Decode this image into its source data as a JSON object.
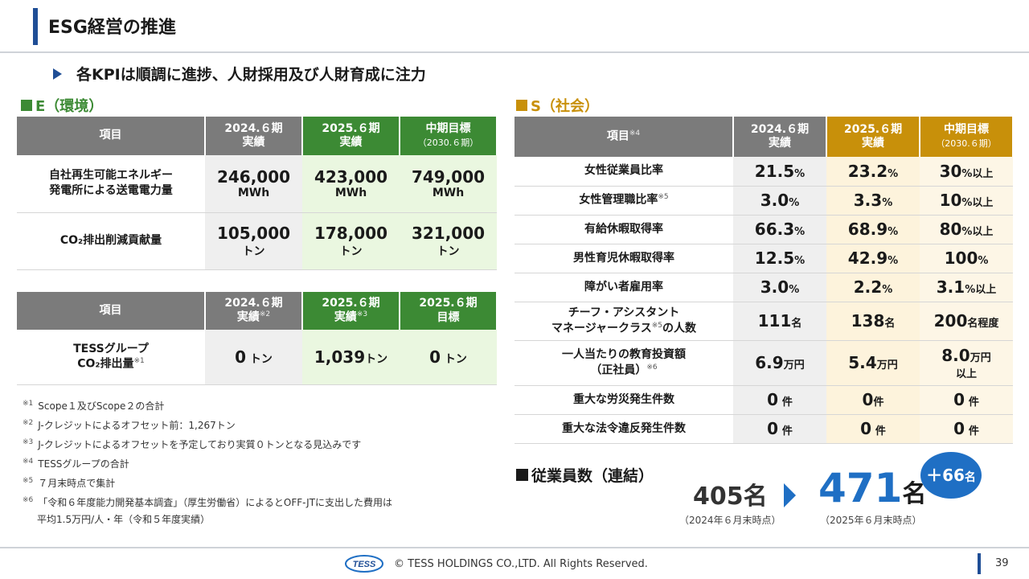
{
  "header": {
    "title": "ESG経営の推進",
    "subtitle": "各KPIは順調に進捗、人財採用及び人財育成に注力"
  },
  "env": {
    "heading": "E（環境）",
    "table1": {
      "h_item": "項目",
      "h_c1": [
        "2024.６期",
        "実績"
      ],
      "h_c2": [
        "2025.６期",
        "実績"
      ],
      "h_c3": [
        "中期目標",
        "（2030.６期）"
      ],
      "rows": [
        {
          "label": [
            "自社再生可能エネルギー",
            "発電所による送電電力量"
          ],
          "v1": "246,000",
          "u1": "MWh",
          "v2": "423,000",
          "u2": "MWh",
          "v3": "749,000",
          "u3": "MWh"
        },
        {
          "label": [
            "CO₂排出削減貢献量"
          ],
          "v1": "105,000",
          "u1": "トン",
          "v2": "178,000",
          "u2": "トン",
          "v3": "321,000",
          "u3": "トン"
        }
      ]
    },
    "table2": {
      "h_item": "項目",
      "h_c1": [
        "2024.６期",
        "実績",
        "※2"
      ],
      "h_c2": [
        "2025.６期",
        "実績",
        "※3"
      ],
      "h_c3": [
        "2025.６期",
        "目標"
      ],
      "row": {
        "label1": "TESSグループ",
        "label2": "CO₂排出量",
        "label_note": "※1",
        "v1": "0",
        "u1": "トン",
        "v2": "1,039",
        "u2": "トン",
        "v3": "0",
        "u3": "トン"
      }
    }
  },
  "notes": [
    {
      "mark": "※1",
      "text": "Scope１及びScope２の合計"
    },
    {
      "mark": "※2",
      "text": "J-クレジットによるオフセット前：1,267トン"
    },
    {
      "mark": "※3",
      "text": "J-クレジットによるオフセットを予定しており実質０トンとなる見込みです"
    },
    {
      "mark": "※4",
      "text": "TESSグループの合計"
    },
    {
      "mark": "※5",
      "text": "７月末時点で集計"
    },
    {
      "mark": "※6",
      "text": "「令和６年度能力開発基本調査」（厚生労働省）によるとOFF-JTに支出した費用は"
    }
  ],
  "note6_cont": "平均1.5万円/人・年（令和５年度実績）",
  "social": {
    "heading": "S（社会）",
    "h_item": "項目",
    "h_item_note": "※4",
    "h_c1": [
      "2024.６期",
      "実績"
    ],
    "h_c2": [
      "2025.６期",
      "実績"
    ],
    "h_c3": [
      "中期目標",
      "（2030.６期）"
    ],
    "rows": [
      {
        "label": "女性従業員比率",
        "note": "",
        "v1": "21.5",
        "u1": "%",
        "v2": "23.2",
        "u2": "%",
        "v3": "30",
        "u3": "%以上"
      },
      {
        "label": "女性管理職比率",
        "note": "※5",
        "v1": "3.0",
        "u1": "%",
        "v2": "3.3",
        "u2": "%",
        "v3": "10",
        "u3": "%以上"
      },
      {
        "label": "有給休暇取得率",
        "note": "",
        "v1": "66.3",
        "u1": "%",
        "v2": "68.9",
        "u2": "%",
        "v3": "80",
        "u3": "%以上"
      },
      {
        "label": "男性育児休暇取得率",
        "note": "",
        "v1": "12.5",
        "u1": "%",
        "v2": "42.9",
        "u2": "%",
        "v3": "100",
        "u3": "%"
      },
      {
        "label": "障がい者雇用率",
        "note": "",
        "v1": "3.0",
        "u1": "%",
        "v2": "2.2",
        "u2": "%",
        "v3": "3.1",
        "u3": "%以上"
      }
    ],
    "row_chief": {
      "label1": "チーフ・アシスタント",
      "label2a": "マネージャークラス",
      "note": "※5",
      "label2b": "の人数",
      "v1": "111",
      "u1": "名",
      "v2": "138",
      "u2": "名",
      "v3": "200",
      "u3": "名程度"
    },
    "row_edu": {
      "label1": "一人当たりの教育投資額",
      "label2": "（正社員）",
      "note": "※6",
      "v1": "6.9",
      "u1": "万円",
      "v2": "5.4",
      "u2": "万円",
      "v3": "8.0",
      "u3": "万円",
      "u3b": "以上"
    },
    "rows_tail": [
      {
        "label": "重大な労災発生件数",
        "v1": "0",
        "u1": "件",
        "v2": "0",
        "u2": "件",
        "v3": "0",
        "u3": "件"
      },
      {
        "label": "重大な法令違反発生件数",
        "v1": "0",
        "u1": "件",
        "v2": "0",
        "u2": "件",
        "v3": "0",
        "u3": "件"
      }
    ]
  },
  "employees": {
    "heading": "従業員数（連結）",
    "prev_value": "405",
    "prev_unit": "名",
    "prev_note": "（2024年６月末時点）",
    "cur_value": "471",
    "cur_unit": "名",
    "cur_note": "（2025年６月末時点）",
    "delta": "＋66",
    "delta_unit": "名"
  },
  "footer": {
    "logo_text": "TESS",
    "copyright": "© TESS HOLDINGS CO.,LTD. All Rights Reserved.",
    "page": "39"
  }
}
